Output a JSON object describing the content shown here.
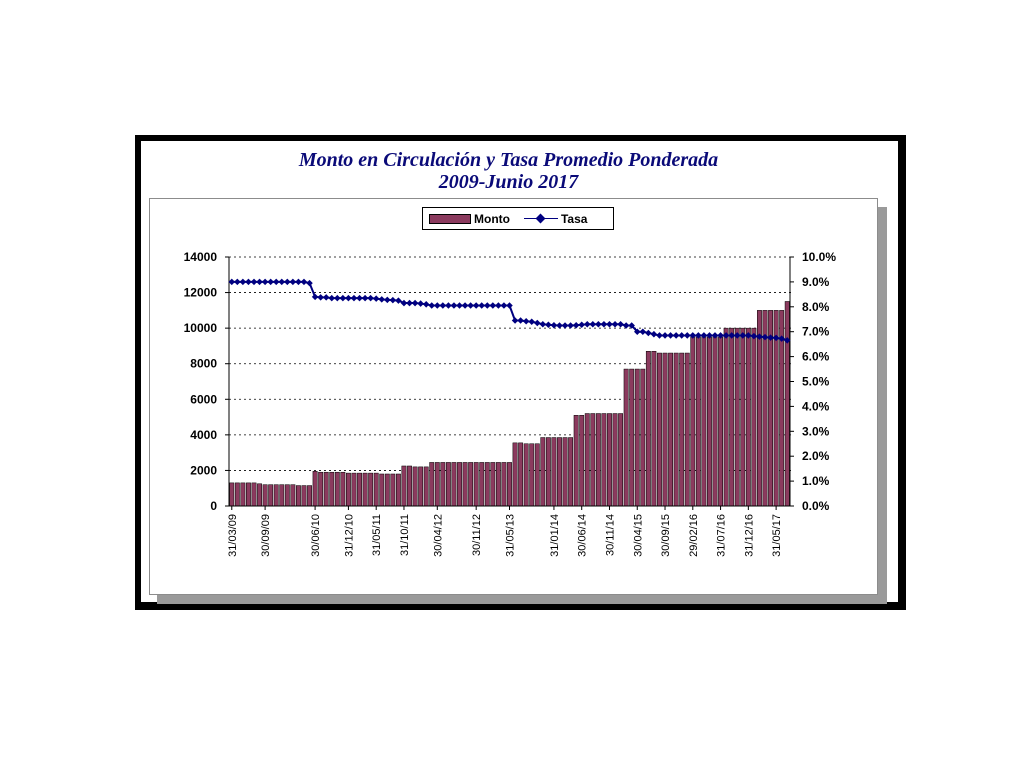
{
  "chart_data": {
    "type": "bar",
    "title": "Monto en Circulación y Tasa Promedio Ponderada",
    "subtitle": "2009-Junio 2017",
    "legend": {
      "placement": "top-center",
      "entries": [
        "Monto",
        "Tasa"
      ]
    },
    "grid": true,
    "y_left": {
      "min": 0,
      "max": 14000,
      "ticks": [
        "0",
        "2000",
        "4000",
        "6000",
        "8000",
        "10000",
        "12000",
        "14000"
      ]
    },
    "y_right": {
      "min": 0,
      "max": 10,
      "ticks": [
        "0.0%",
        "1.0%",
        "2.0%",
        "3.0%",
        "4.0%",
        "5.0%",
        "6.0%",
        "7.0%",
        "8.0%",
        "9.0%",
        "10.0%"
      ]
    },
    "x_tick_labels": [
      {
        "label": "31/03/09",
        "index": 0
      },
      {
        "label": "30/09/09",
        "index": 6
      },
      {
        "label": "30/06/10",
        "index": 15
      },
      {
        "label": "31/12/10",
        "index": 21
      },
      {
        "label": "31/05/11",
        "index": 26
      },
      {
        "label": "31/10/11",
        "index": 31
      },
      {
        "label": "30/04/12",
        "index": 37
      },
      {
        "label": "30/11/12",
        "index": 44
      },
      {
        "label": "31/05/13",
        "index": 50
      },
      {
        "label": "31/01/14",
        "index": 58
      },
      {
        "label": "30/06/14",
        "index": 63
      },
      {
        "label": "30/11/14",
        "index": 68
      },
      {
        "label": "30/04/15",
        "index": 73
      },
      {
        "label": "30/09/15",
        "index": 78
      },
      {
        "label": "29/02/16",
        "index": 83
      },
      {
        "label": "31/07/16",
        "index": 88
      },
      {
        "label": "31/12/16",
        "index": 93
      },
      {
        "label": "31/05/17",
        "index": 98
      }
    ],
    "series": [
      {
        "name": "Monto",
        "type": "bar",
        "axis": "left",
        "color": "#8b3a5e",
        "values": [
          1300,
          1300,
          1300,
          1300,
          1300,
          1250,
          1200,
          1200,
          1200,
          1200,
          1200,
          1200,
          1150,
          1150,
          1150,
          1950,
          1900,
          1900,
          1900,
          1900,
          1900,
          1850,
          1850,
          1850,
          1850,
          1850,
          1850,
          1800,
          1800,
          1800,
          1800,
          2250,
          2250,
          2200,
          2200,
          2200,
          2450,
          2450,
          2450,
          2450,
          2450,
          2450,
          2450,
          2450,
          2450,
          2450,
          2450,
          2450,
          2450,
          2450,
          2450,
          3550,
          3550,
          3500,
          3500,
          3500,
          3850,
          3850,
          3850,
          3850,
          3850,
          3850,
          5100,
          5100,
          5200,
          5200,
          5200,
          5200,
          5200,
          5200,
          5200,
          7700,
          7700,
          7700,
          7700,
          8700,
          8700,
          8600,
          8600,
          8600,
          8600,
          8600,
          8600,
          9500,
          9500,
          9500,
          9500,
          9500,
          9500,
          10000,
          10000,
          10000,
          10000,
          10000,
          10000,
          11000,
          11000,
          11000,
          11000,
          11000,
          11500
        ]
      },
      {
        "name": "Tasa",
        "type": "line",
        "axis": "right",
        "color": "#000080",
        "values": [
          9.0,
          9.0,
          9.0,
          9.0,
          9.0,
          9.0,
          9.0,
          9.0,
          9.0,
          9.0,
          9.0,
          9.0,
          9.0,
          9.0,
          8.95,
          8.4,
          8.38,
          8.38,
          8.35,
          8.35,
          8.35,
          8.35,
          8.35,
          8.35,
          8.35,
          8.35,
          8.33,
          8.3,
          8.28,
          8.27,
          8.25,
          8.15,
          8.15,
          8.15,
          8.13,
          8.1,
          8.05,
          8.05,
          8.05,
          8.05,
          8.05,
          8.05,
          8.05,
          8.05,
          8.05,
          8.05,
          8.05,
          8.05,
          8.05,
          8.05,
          8.05,
          7.45,
          7.45,
          7.42,
          7.4,
          7.35,
          7.3,
          7.28,
          7.26,
          7.25,
          7.25,
          7.25,
          7.26,
          7.28,
          7.3,
          7.3,
          7.3,
          7.3,
          7.3,
          7.3,
          7.3,
          7.25,
          7.25,
          7.0,
          7.0,
          6.95,
          6.9,
          6.85,
          6.85,
          6.85,
          6.85,
          6.85,
          6.85,
          6.85,
          6.85,
          6.85,
          6.85,
          6.85,
          6.85,
          6.85,
          6.85,
          6.85,
          6.85,
          6.85,
          6.82,
          6.8,
          6.78,
          6.76,
          6.75,
          6.72,
          6.65
        ]
      }
    ]
  }
}
